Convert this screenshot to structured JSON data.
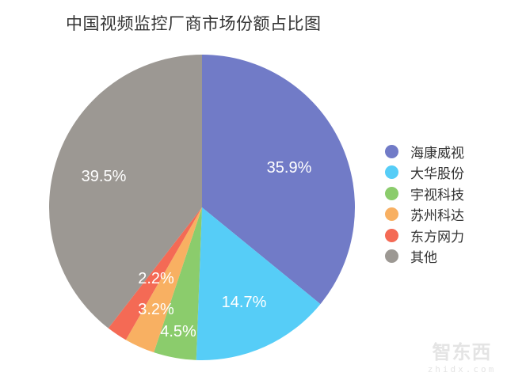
{
  "title": "中国视频监控厂商市场份额占比图",
  "chart_data": {
    "type": "pie",
    "title": "中国视频监控厂商市场份额占比图",
    "start_angle": "12 o'clock, clockwise",
    "slices": [
      {
        "label": "海康威视",
        "value": 35.9,
        "display": "35.9%",
        "color": "#717bc7"
      },
      {
        "label": "大华股份",
        "value": 14.7,
        "display": "14.7%",
        "color": "#56cdf7"
      },
      {
        "label": "宇视科技",
        "value": 4.5,
        "display": "4.5%",
        "color": "#8bcc6c"
      },
      {
        "label": "苏州科达",
        "value": 3.2,
        "display": "3.2%",
        "color": "#f8b062"
      },
      {
        "label": "东方网力",
        "value": 2.2,
        "display": "2.2%",
        "color": "#f46a55"
      },
      {
        "label": "其他",
        "value": 39.5,
        "display": "39.5%",
        "color": "#9c9893"
      }
    ],
    "legend_position": "right"
  },
  "legend": {
    "items": [
      {
        "label": "海康威视",
        "color": "#717bc7"
      },
      {
        "label": "大华股份",
        "color": "#56cdf7"
      },
      {
        "label": "宇视科技",
        "color": "#8bcc6c"
      },
      {
        "label": "苏州科达",
        "color": "#f8b062"
      },
      {
        "label": "东方网力",
        "color": "#f46a55"
      },
      {
        "label": " 其他",
        "color": "#9c9893"
      }
    ]
  },
  "watermark": {
    "cn": "智东西",
    "en": "zhidx.com"
  }
}
